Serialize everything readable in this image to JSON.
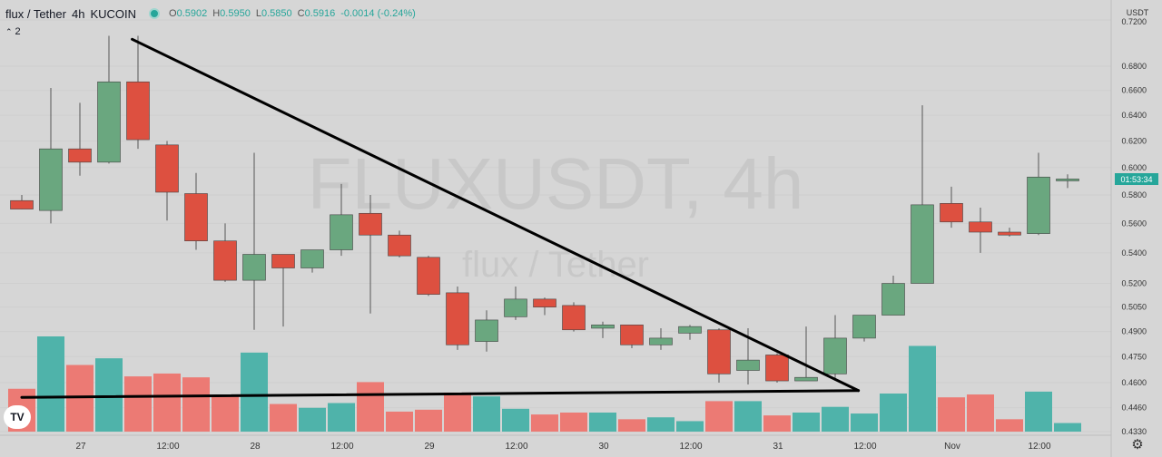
{
  "header": {
    "symbol": "flux / Tether",
    "interval": "4h",
    "exchange": "KUCOIN",
    "ohlc": {
      "open_label": "O",
      "open": "0.5902",
      "high_label": "H",
      "high": "0.5950",
      "low_label": "L",
      "low": "0.5850",
      "close_label": "C",
      "close": "0.5916",
      "change": "-0.0014 (-0.24%)"
    }
  },
  "indicator_toggle": {
    "chevron": "⌃",
    "count": "2"
  },
  "watermark": {
    "line1": "FLUXUSDT, 4h",
    "line2": "flux / Tether"
  },
  "countdown": "01:53:34",
  "brand": {
    "logo_text": "TV"
  },
  "icons": {
    "settings": "gear-icon",
    "indicator_toggle": "chevron-up-icon",
    "live_status": "status-dot-icon"
  },
  "colors": {
    "background": "#d6d6d6",
    "up": "#6aa77f",
    "down": "#dd5040",
    "vol_up": "#4fb3aa",
    "vol_down": "#ec7a74",
    "trendline": "#000000",
    "price_tag": "#26a69a"
  },
  "chart_data": {
    "type": "candlestick",
    "currency_label": "USDT",
    "scale": "log",
    "y_ticks": [
      "0.7200",
      "0.6800",
      "0.6600",
      "0.6400",
      "0.6200",
      "0.6000",
      "0.5800",
      "0.5600",
      "0.5400",
      "0.5200",
      "0.5050",
      "0.4900",
      "0.4750",
      "0.4600",
      "0.4460",
      "0.4330"
    ],
    "x_ticks": [
      {
        "label": "27",
        "index": 2
      },
      {
        "label": "12:00",
        "index": 5
      },
      {
        "label": "28",
        "index": 8
      },
      {
        "label": "12:00",
        "index": 11
      },
      {
        "label": "29",
        "index": 14
      },
      {
        "label": "12:00",
        "index": 17
      },
      {
        "label": "30",
        "index": 20
      },
      {
        "label": "12:00",
        "index": 23
      },
      {
        "label": "31",
        "index": 26
      },
      {
        "label": "12:00",
        "index": 29
      },
      {
        "label": "Nov",
        "index": 32
      },
      {
        "label": "12:00",
        "index": 35
      }
    ],
    "last_price": 0.5916,
    "candles": [
      {
        "o": 0.576,
        "h": 0.58,
        "l": 0.57,
        "c": 0.57,
        "v": 0.45
      },
      {
        "o": 0.569,
        "h": 0.662,
        "l": 0.56,
        "c": 0.614,
        "v": 1.0
      },
      {
        "o": 0.614,
        "h": 0.65,
        "l": 0.594,
        "c": 0.604,
        "v": 0.7
      },
      {
        "o": 0.604,
        "h": 0.706,
        "l": 0.603,
        "c": 0.667,
        "v": 0.77
      },
      {
        "o": 0.667,
        "h": 0.706,
        "l": 0.614,
        "c": 0.621,
        "v": 0.58
      },
      {
        "o": 0.617,
        "h": 0.62,
        "l": 0.562,
        "c": 0.582,
        "v": 0.61
      },
      {
        "o": 0.581,
        "h": 0.596,
        "l": 0.542,
        "c": 0.548,
        "v": 0.57
      },
      {
        "o": 0.548,
        "h": 0.56,
        "l": 0.521,
        "c": 0.522,
        "v": 0.37
      },
      {
        "o": 0.522,
        "h": 0.611,
        "l": 0.491,
        "c": 0.539,
        "v": 0.83
      },
      {
        "o": 0.539,
        "h": 0.539,
        "l": 0.493,
        "c": 0.53,
        "v": 0.29
      },
      {
        "o": 0.53,
        "h": 0.541,
        "l": 0.527,
        "c": 0.542,
        "v": 0.25
      },
      {
        "o": 0.542,
        "h": 0.588,
        "l": 0.538,
        "c": 0.566,
        "v": 0.3
      },
      {
        "o": 0.567,
        "h": 0.58,
        "l": 0.501,
        "c": 0.552,
        "v": 0.52
      },
      {
        "o": 0.552,
        "h": 0.555,
        "l": 0.537,
        "c": 0.538,
        "v": 0.21
      },
      {
        "o": 0.537,
        "h": 0.538,
        "l": 0.512,
        "c": 0.513,
        "v": 0.23
      },
      {
        "o": 0.514,
        "h": 0.518,
        "l": 0.479,
        "c": 0.482,
        "v": 0.41
      },
      {
        "o": 0.484,
        "h": 0.503,
        "l": 0.478,
        "c": 0.497,
        "v": 0.37
      },
      {
        "o": 0.499,
        "h": 0.518,
        "l": 0.497,
        "c": 0.51,
        "v": 0.24
      },
      {
        "o": 0.51,
        "h": 0.511,
        "l": 0.5,
        "c": 0.505,
        "v": 0.18
      },
      {
        "o": 0.506,
        "h": 0.508,
        "l": 0.49,
        "c": 0.491,
        "v": 0.2
      },
      {
        "o": 0.492,
        "h": 0.496,
        "l": 0.486,
        "c": 0.494,
        "v": 0.2
      },
      {
        "o": 0.494,
        "h": 0.494,
        "l": 0.48,
        "c": 0.482,
        "v": 0.13
      },
      {
        "o": 0.482,
        "h": 0.492,
        "l": 0.479,
        "c": 0.486,
        "v": 0.15
      },
      {
        "o": 0.489,
        "h": 0.494,
        "l": 0.485,
        "c": 0.493,
        "v": 0.11
      },
      {
        "o": 0.491,
        "h": 0.492,
        "l": 0.46,
        "c": 0.465,
        "v": 0.32
      },
      {
        "o": 0.467,
        "h": 0.492,
        "l": 0.459,
        "c": 0.473,
        "v": 0.32
      },
      {
        "o": 0.476,
        "h": 0.477,
        "l": 0.46,
        "c": 0.461,
        "v": 0.17
      },
      {
        "o": 0.461,
        "h": 0.493,
        "l": 0.461,
        "c": 0.463,
        "v": 0.2
      },
      {
        "o": 0.465,
        "h": 0.5,
        "l": 0.461,
        "c": 0.486,
        "v": 0.26
      },
      {
        "o": 0.486,
        "h": 0.5,
        "l": 0.484,
        "c": 0.5,
        "v": 0.19
      },
      {
        "o": 0.5,
        "h": 0.525,
        "l": 0.5,
        "c": 0.52,
        "v": 0.4
      },
      {
        "o": 0.52,
        "h": 0.648,
        "l": 0.52,
        "c": 0.573,
        "v": 0.9
      },
      {
        "o": 0.574,
        "h": 0.586,
        "l": 0.557,
        "c": 0.561,
        "v": 0.36
      },
      {
        "o": 0.561,
        "h": 0.571,
        "l": 0.54,
        "c": 0.554,
        "v": 0.39
      },
      {
        "o": 0.554,
        "h": 0.557,
        "l": 0.551,
        "c": 0.552,
        "v": 0.13
      },
      {
        "o": 0.553,
        "h": 0.611,
        "l": 0.552,
        "c": 0.593,
        "v": 0.42
      },
      {
        "o": 0.5902,
        "h": 0.595,
        "l": 0.585,
        "c": 0.5916,
        "v": 0.09
      }
    ],
    "trendlines": [
      {
        "from": {
          "index": 3.8,
          "price": 0.703
        },
        "to": {
          "index": 28.8,
          "price": 0.4555
        }
      },
      {
        "from": {
          "index": 0.0,
          "price": 0.4517
        },
        "to": {
          "index": 28.8,
          "price": 0.4555
        }
      }
    ]
  }
}
